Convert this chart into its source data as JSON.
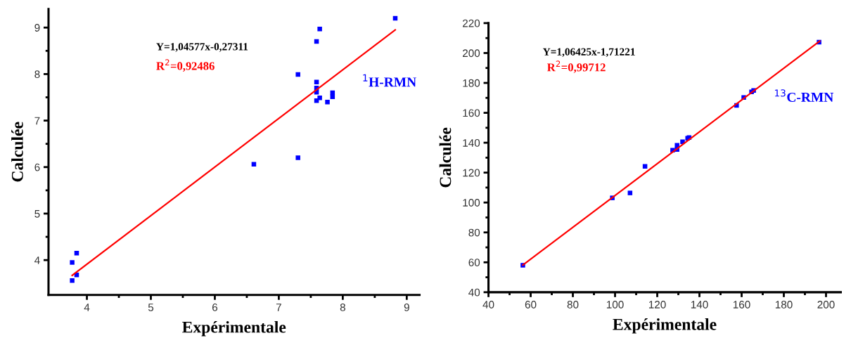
{
  "chart_data": [
    {
      "type": "scatter",
      "xlabel": "Expérimentale",
      "ylabel": "Calculée",
      "xlim": [
        3.4,
        9.2
      ],
      "ylim": [
        3.25,
        9.4
      ],
      "xticks": [
        4,
        5,
        6,
        7,
        8,
        9
      ],
      "yticks": [
        4,
        5,
        6,
        7,
        8,
        9
      ],
      "grid": false,
      "legend": false,
      "marker": "square",
      "annotations": [
        "Y=1,04577x-0,27311",
        "R$^{2}$=0,92486",
        "$^{1}$H-RMN"
      ],
      "series": [
        {
          "color": "#0000ff",
          "x": [
            8.82,
            7.64,
            7.59,
            7.3,
            7.59,
            7.59,
            7.59,
            7.64,
            7.59,
            7.76,
            7.84,
            7.84,
            7.3,
            6.61,
            3.84,
            3.77,
            3.84,
            3.77
          ],
          "values": [
            9.2,
            8.97,
            8.7,
            7.99,
            7.83,
            7.7,
            7.61,
            7.49,
            7.43,
            7.4,
            7.6,
            7.51,
            6.2,
            6.06,
            4.15,
            3.95,
            3.68,
            3.56
          ]
        },
        {
          "type": "line",
          "color": "#ff0000",
          "marker": "none",
          "x": [
            3.77,
            8.82
          ],
          "values": [
            3.67,
            8.95
          ]
        }
      ]
    },
    {
      "type": "scatter",
      "xlabel": "Expérimentale",
      "ylabel": "Calculée",
      "xlim": [
        40,
        207
      ],
      "ylim": [
        40,
        220
      ],
      "xticks": [
        40,
        60,
        80,
        100,
        120,
        140,
        160,
        180,
        200
      ],
      "yticks": [
        40,
        60,
        80,
        100,
        120,
        140,
        160,
        180,
        200,
        220
      ],
      "grid": false,
      "legend": false,
      "marker": "square",
      "annotations": [
        "Y=1,06425x-1,71221",
        "R$^{2}$=0,99712",
        "$^{13}$C-RMN"
      ],
      "series": [
        {
          "color": "#0000ff",
          "x": [
            56.3,
            98.7,
            107.1,
            114.2,
            127.3,
            129.4,
            129.4,
            132.0,
            134.4,
            135.1,
            157.6,
            161.0,
            164.7,
            165.7,
            196.7
          ],
          "values": [
            58.0,
            103.1,
            106.4,
            124.2,
            135.0,
            135.5,
            138.3,
            140.6,
            143.0,
            143.5,
            165.0,
            170.2,
            174.0,
            174.9,
            207.3
          ]
        },
        {
          "type": "line",
          "color": "#ff0000",
          "marker": "none",
          "x": [
            56.3,
            197.0
          ],
          "values": [
            58.2,
            207.9
          ]
        }
      ]
    }
  ]
}
